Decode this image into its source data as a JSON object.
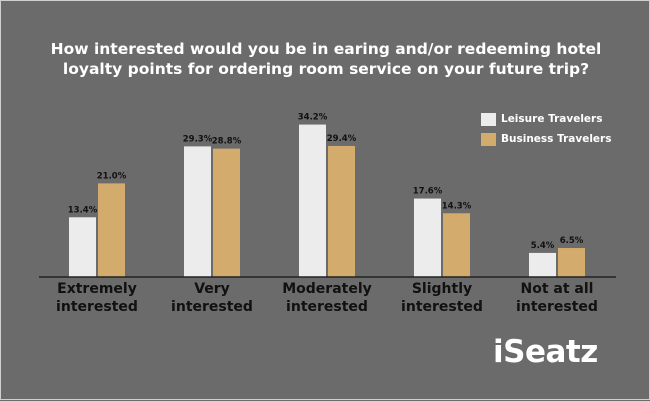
{
  "chart_data": {
    "type": "bar",
    "title": "How interested would you be in earing and/or redeeming hotel loyalty points for ordering room service on your future trip?",
    "categories": [
      [
        "Extremely",
        "interested"
      ],
      [
        "Very",
        "interested"
      ],
      [
        "Moderately",
        "interested"
      ],
      [
        "Slightly",
        "interested"
      ],
      [
        "Not at all",
        "interested"
      ]
    ],
    "series": [
      {
        "name": "Leisure Travelers",
        "color": "#ececec",
        "values": [
          13.4,
          29.3,
          34.2,
          17.6,
          5.4
        ],
        "labels": [
          "13.4%",
          "29.3%",
          "34.2%",
          "17.6%",
          "5.4%"
        ]
      },
      {
        "name": "Business Travelers",
        "color": "#d3ac6d",
        "values": [
          21.0,
          28.8,
          29.4,
          14.3,
          6.5
        ],
        "labels": [
          "21.0%",
          "28.8%",
          "29.4%",
          "14.3%",
          "6.5%"
        ]
      }
    ],
    "ylim": [
      0,
      35
    ],
    "grid": false,
    "legend": "top-right",
    "colors": {
      "background": "#6b6b6b",
      "axis": "#222222",
      "text": "#ffffff",
      "label_text": "#111111"
    }
  },
  "brand": {
    "name": "iSeatz"
  }
}
